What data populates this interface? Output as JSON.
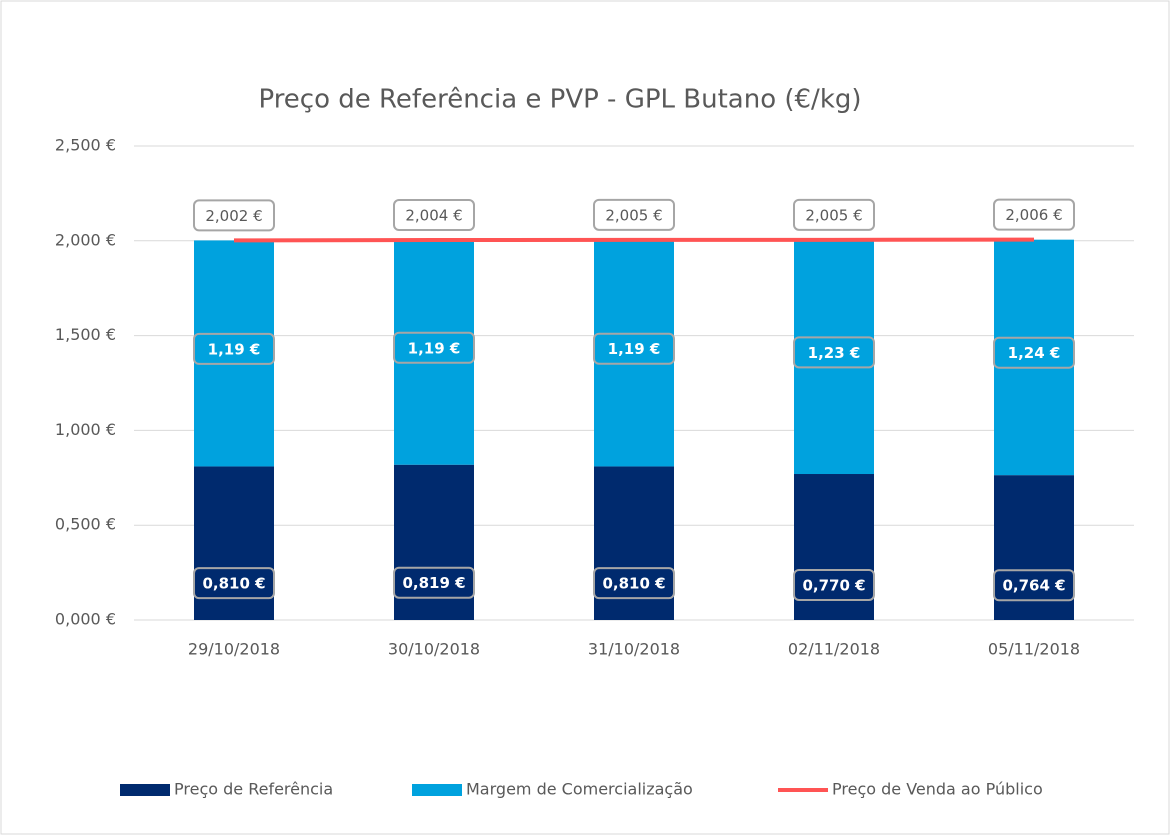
{
  "chart_data": {
    "type": "bar",
    "stacked": true,
    "title": "Preço de Referência e PVP - GPL Butano (€/kg)",
    "categories": [
      "29/10/2018",
      "30/10/2018",
      "31/10/2018",
      "02/11/2018",
      "05/11/2018"
    ],
    "series": [
      {
        "name": "Preço de Referência",
        "type": "bar",
        "color": "#002a6e",
        "values": [
          0.81,
          0.819,
          0.81,
          0.77,
          0.764
        ],
        "value_labels": [
          "0,810 €",
          "0,819 €",
          "0,810 €",
          "0,770 €",
          "0,764 €"
        ]
      },
      {
        "name": "Margem de Comercialização",
        "type": "bar",
        "color": "#00a2de",
        "values": [
          1.192,
          1.186,
          1.194,
          1.234,
          1.242
        ],
        "value_labels": [
          "1,19 €",
          "1,19 €",
          "1,19 €",
          "1,23 €",
          "1,24 €"
        ]
      },
      {
        "name": "Preço de Venda ao Público",
        "type": "line",
        "color": "#ff5454",
        "values": [
          2.002,
          2.004,
          2.005,
          2.005,
          2.006
        ],
        "value_labels": [
          "2,002 €",
          "2,004 €",
          "2,005 €",
          "2,005 €",
          "2,006 €"
        ]
      }
    ],
    "ylim": [
      0,
      2.5
    ],
    "yticks": [
      {
        "value": 0,
        "label": "0,000 €"
      },
      {
        "value": 0.5,
        "label": "0,500 €"
      },
      {
        "value": 1,
        "label": "1,000 €"
      },
      {
        "value": 1.5,
        "label": "1,500 €"
      },
      {
        "value": 2,
        "label": "2,000 €"
      },
      {
        "value": 2.5,
        "label": "2,500 €"
      }
    ],
    "grid": true,
    "legend": "bottom"
  }
}
